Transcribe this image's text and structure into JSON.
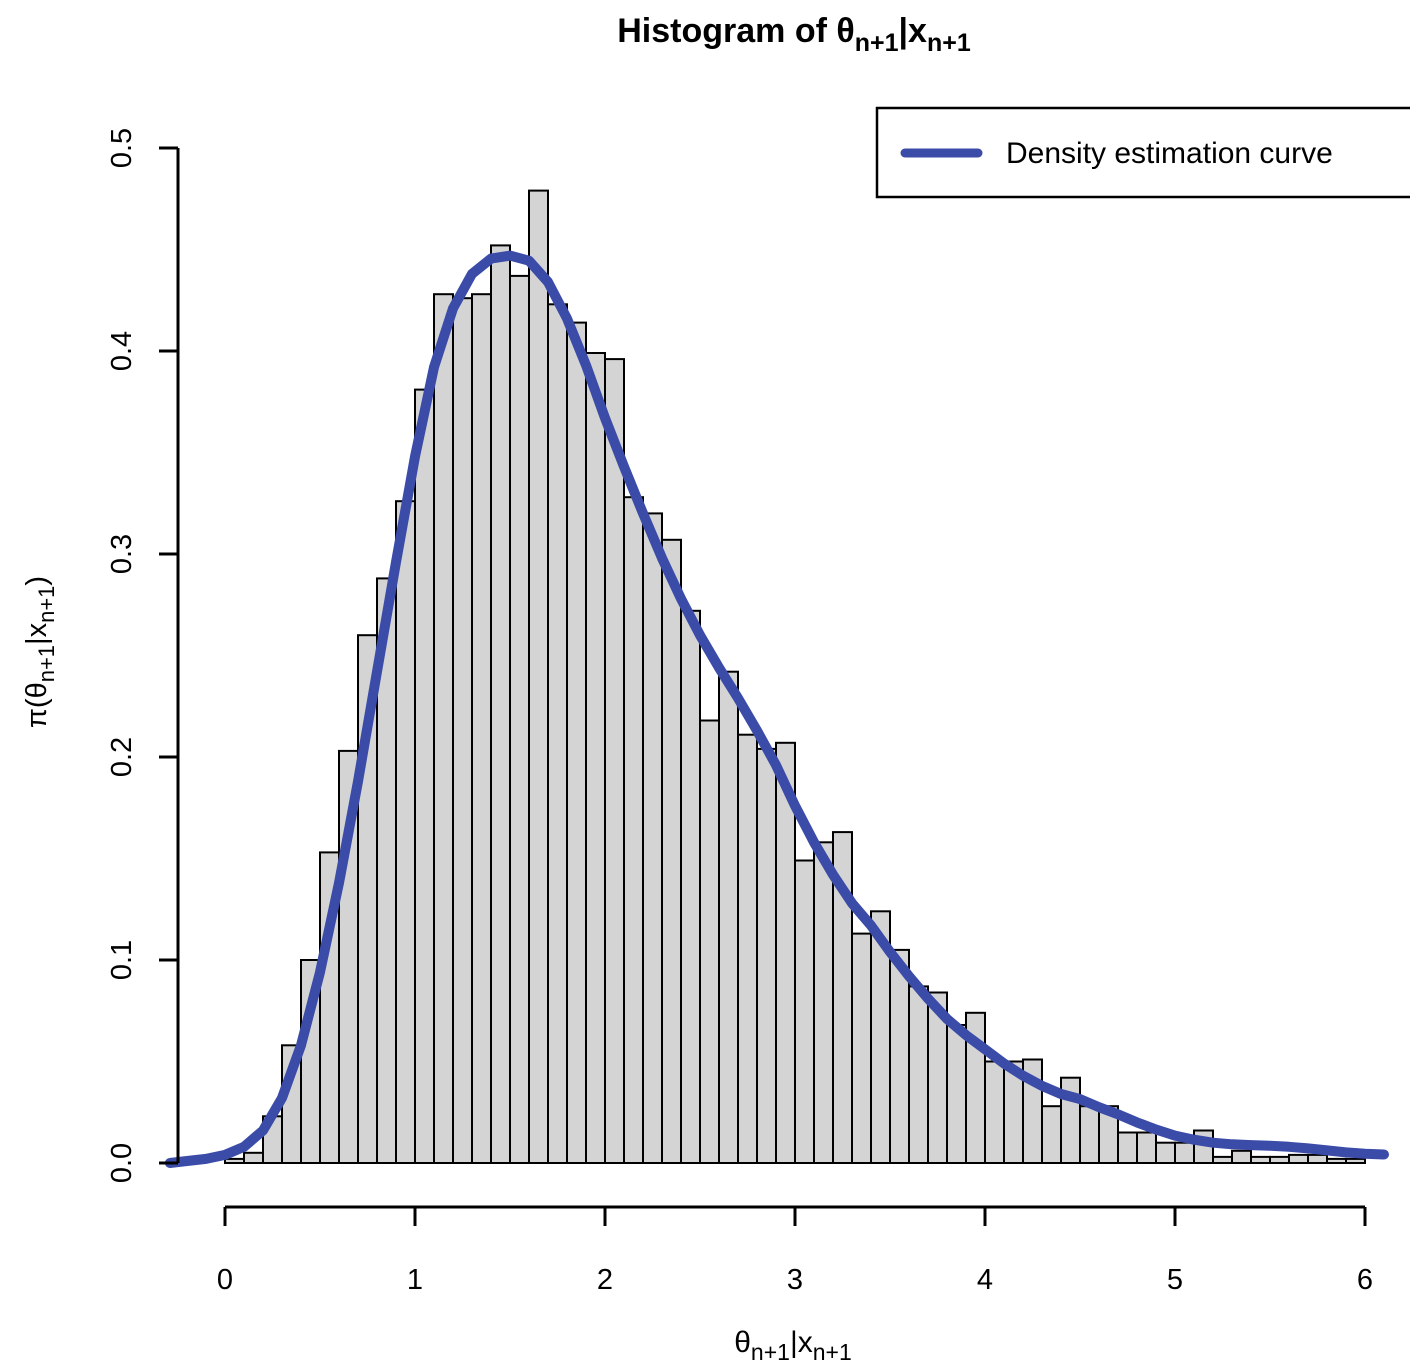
{
  "labels": {
    "title": [
      "Histogram of θ",
      "n+1",
      "|x",
      "n+1"
    ],
    "x_axis": [
      "θ",
      "n+1",
      "|x",
      "n+1"
    ],
    "y_axis": [
      "π(θ",
      "n+1",
      "|x",
      "n+1",
      ")"
    ]
  },
  "legend": {
    "label": "Density estimation curve"
  },
  "chart_data": {
    "type": "bar",
    "subtype": "histogram-with-density-curve",
    "title": "Histogram of θ_{n+1}|x_{n+1}",
    "xlabel": "θ_{n+1}|x_{n+1}",
    "ylabel": "π(θ_{n+1}|x_{n+1})",
    "xlim": [
      0,
      6
    ],
    "ylim": [
      0,
      0.5
    ],
    "grid": false,
    "legend_position": "top-right",
    "x_ticks": [
      0,
      1,
      2,
      3,
      4,
      5,
      6
    ],
    "y_ticks": [
      "0.0",
      "0.1",
      "0.2",
      "0.3",
      "0.4",
      "0.5"
    ],
    "bars": {
      "bin_start": 0.0,
      "bin_width": 0.1,
      "densities": [
        0.002,
        0.005,
        0.023,
        0.058,
        0.1,
        0.153,
        0.203,
        0.26,
        0.288,
        0.326,
        0.381,
        0.428,
        0.426,
        0.428,
        0.452,
        0.437,
        0.479,
        0.423,
        0.414,
        0.399,
        0.396,
        0.328,
        0.32,
        0.307,
        0.272,
        0.218,
        0.242,
        0.211,
        0.204,
        0.207,
        0.149,
        0.158,
        0.163,
        0.113,
        0.124,
        0.105,
        0.087,
        0.084,
        0.068,
        0.074,
        0.05,
        0.05,
        0.051,
        0.028,
        0.042,
        0.028,
        0.028,
        0.015,
        0.015,
        0.01,
        0.01,
        0.016,
        0.003,
        0.006,
        0.003,
        0.003,
        0.004,
        0.004,
        0.002,
        0.002
      ]
    },
    "series": [
      {
        "name": "Density estimation curve",
        "type": "line",
        "x": [
          -0.29,
          -0.2,
          -0.1,
          0.0,
          0.1,
          0.2,
          0.3,
          0.4,
          0.5,
          0.6,
          0.7,
          0.8,
          0.9,
          1.0,
          1.1,
          1.2,
          1.3,
          1.4,
          1.5,
          1.6,
          1.7,
          1.8,
          1.9,
          2.0,
          2.1,
          2.2,
          2.3,
          2.4,
          2.5,
          2.6,
          2.7,
          2.8,
          2.9,
          3.0,
          3.1,
          3.2,
          3.3,
          3.4,
          3.5,
          3.6,
          3.7,
          3.8,
          3.9,
          4.0,
          4.1,
          4.2,
          4.3,
          4.4,
          4.5,
          4.6,
          4.7,
          4.8,
          4.9,
          5.0,
          5.1,
          5.2,
          5.3,
          5.4,
          5.5,
          5.6,
          5.7,
          5.8,
          5.9,
          6.0,
          6.1
        ],
        "y": [
          0.0,
          0.001,
          0.002,
          0.004,
          0.008,
          0.016,
          0.032,
          0.058,
          0.094,
          0.138,
          0.188,
          0.242,
          0.296,
          0.348,
          0.392,
          0.421,
          0.438,
          0.4455,
          0.447,
          0.4445,
          0.434,
          0.416,
          0.393,
          0.367,
          0.343,
          0.32,
          0.298,
          0.278,
          0.26,
          0.244,
          0.229,
          0.213,
          0.196,
          0.176,
          0.158,
          0.142,
          0.128,
          0.117,
          0.104,
          0.092,
          0.081,
          0.071,
          0.063,
          0.056,
          0.049,
          0.043,
          0.038,
          0.034,
          0.0315,
          0.0275,
          0.024,
          0.02,
          0.0165,
          0.0135,
          0.0115,
          0.01,
          0.0092,
          0.0088,
          0.0085,
          0.008,
          0.0072,
          0.0062,
          0.0052,
          0.0046,
          0.0042
        ]
      }
    ],
    "colors": {
      "bar_fill": "#d4d4d4",
      "bar_stroke": "#000000",
      "curve": "#3b4ba8",
      "axis": "#000000",
      "background": "#ffffff"
    }
  }
}
